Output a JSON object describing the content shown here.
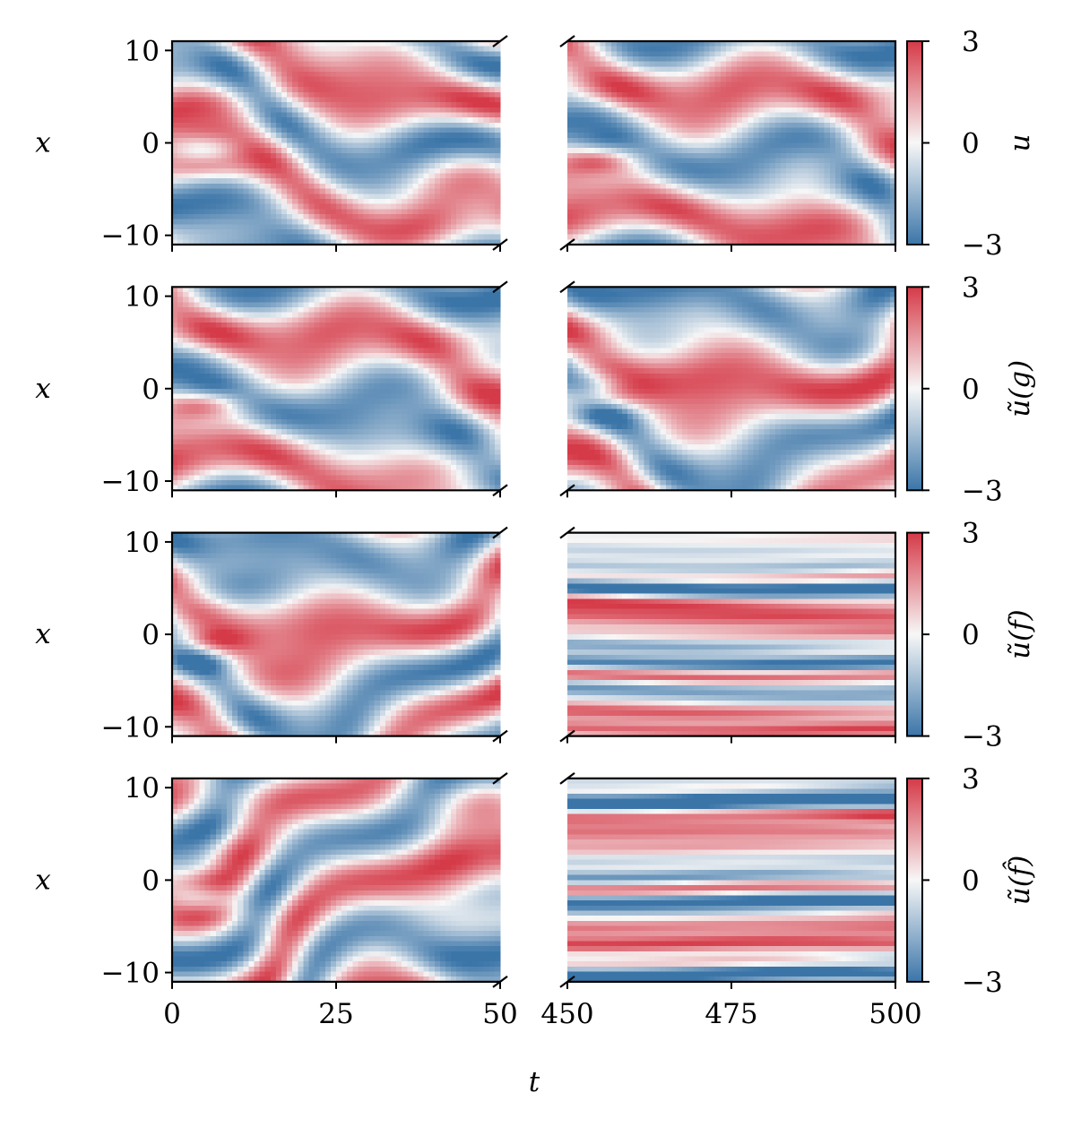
{
  "chart_data": {
    "type": "heatmap",
    "title": "",
    "xlabel": "t",
    "ylabel": "x",
    "broken_x_axis": true,
    "x_segments": [
      {
        "range": [
          0,
          50
        ],
        "ticks": [
          0,
          25,
          50
        ],
        "tick_labels": [
          "0",
          "25",
          "50"
        ]
      },
      {
        "range": [
          450,
          500
        ],
        "ticks": [
          450,
          475,
          500
        ],
        "tick_labels": [
          "450",
          "475",
          "500"
        ]
      }
    ],
    "ylim": [
      -11,
      11
    ],
    "y_ticks": [
      10,
      0,
      -10
    ],
    "y_tick_labels": [
      "10",
      "0",
      "−10"
    ],
    "color_range": [
      -3,
      3
    ],
    "colorbar_ticks": [
      3,
      0,
      -3
    ],
    "colorbar_tick_labels": [
      "3",
      "0",
      "−3"
    ],
    "colormap": {
      "low": "#3b75a8",
      "mid": "#f7f7f7",
      "high": "#d53a48"
    },
    "rows": [
      {
        "name": "u",
        "colorbar_label": "u",
        "right_pattern": "smooth"
      },
      {
        "name": "u~(g)",
        "colorbar_label": "ũ(g)",
        "right_pattern": "smooth"
      },
      {
        "name": "u~(f)",
        "colorbar_label": "ũ(f)",
        "right_pattern": "striped"
      },
      {
        "name": "u~(f hat)",
        "colorbar_label": "ũ(f̂)",
        "right_pattern": "striped"
      }
    ]
  }
}
